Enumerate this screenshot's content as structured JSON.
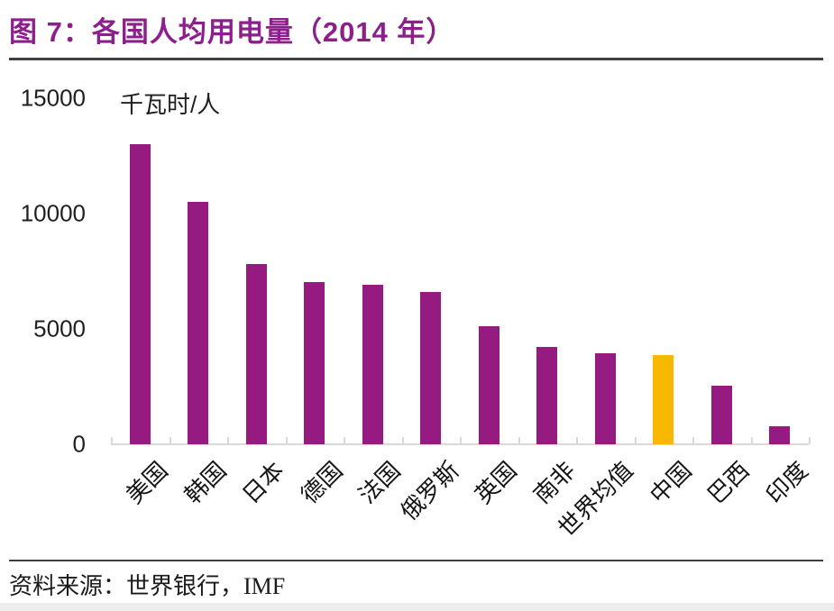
{
  "figure": {
    "title": "图 7：各国人均用电量（2014 年）",
    "source": "资料来源：世界银行，IMF"
  },
  "chart_data": {
    "type": "bar",
    "title": "各国人均用电量（2014 年）",
    "unit_label": "千瓦时/人",
    "categories": [
      "美国",
      "韩国",
      "日本",
      "德国",
      "法国",
      "俄罗斯",
      "英国",
      "南非",
      "世界均值",
      "中国",
      "巴西",
      "印度"
    ],
    "values": [
      13000,
      10500,
      7800,
      7050,
      6900,
      6600,
      5100,
      4200,
      3950,
      3850,
      2550,
      800
    ],
    "ylim": [
      0,
      15000
    ],
    "yticks": [
      0,
      5000,
      10000,
      15000
    ],
    "xlabel": "",
    "ylabel": "千瓦时/人",
    "grid": false,
    "legend": "none",
    "bar_color": "#951B81",
    "highlight_color": "#F9B800",
    "highlight_category": "中国",
    "axis_color": "#D9D9D9",
    "title_color": "#8C1F8C"
  }
}
